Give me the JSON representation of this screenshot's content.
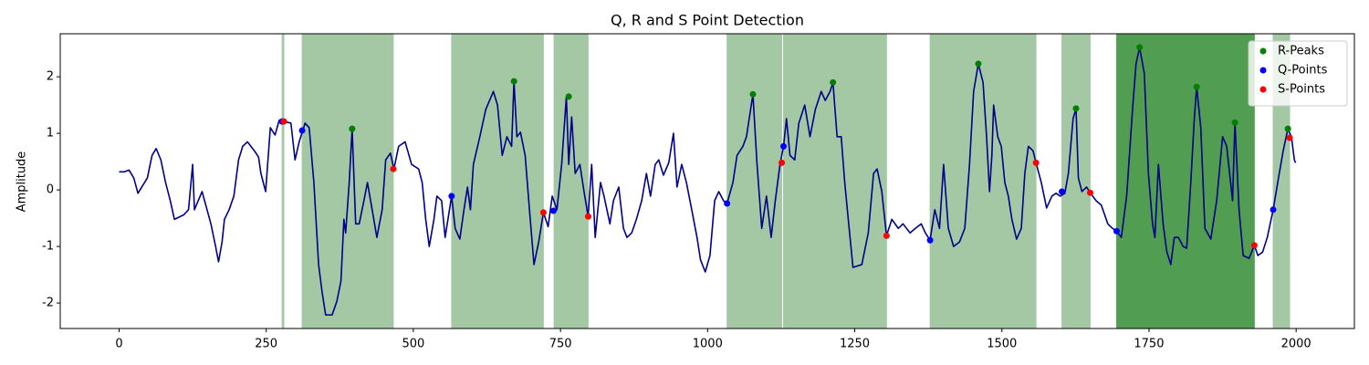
{
  "chart_data": {
    "type": "line",
    "title": "Q, R and S Point Detection",
    "y_label": "Amplitude",
    "xlim": [
      -100,
      2099
    ],
    "ylim": [
      -2.45,
      2.76
    ],
    "xticks": [
      0,
      250,
      500,
      750,
      1000,
      1250,
      1500,
      1750,
      2000
    ],
    "yticks": [
      -2,
      -1,
      0,
      1,
      2
    ],
    "grid": false,
    "legend": "upper right",
    "color": "#00008b",
    "x": [
      0,
      9,
      17,
      25,
      32,
      48,
      56,
      63,
      71,
      79,
      87,
      94,
      110,
      118,
      125,
      128,
      141,
      156,
      164,
      169,
      175,
      179,
      187,
      195,
      203,
      210,
      218,
      230,
      237,
      241,
      249,
      257,
      265,
      272,
      292,
      299,
      306,
      316,
      323,
      331,
      339,
      345,
      351,
      362,
      370,
      377,
      382,
      385,
      391,
      396,
      402,
      408,
      416,
      422,
      430,
      438,
      447,
      453,
      461,
      467,
      475,
      486,
      497,
      509,
      515,
      521,
      527,
      535,
      540,
      548,
      554,
      565,
      571,
      579,
      586,
      592,
      597,
      602,
      613,
      623,
      636,
      643,
      651,
      659,
      667,
      671,
      676,
      682,
      690,
      698,
      705,
      713,
      721,
      729,
      736,
      744,
      752,
      760,
      764,
      769,
      775,
      783,
      790,
      797,
      803,
      809,
      818,
      824,
      834,
      840,
      849,
      857,
      863,
      871,
      879,
      888,
      896,
      903,
      911,
      917,
      925,
      934,
      942,
      948,
      956,
      964,
      973,
      982,
      988,
      996,
      1004,
      1012,
      1019,
      1027,
      1033,
      1043,
      1050,
      1060,
      1066,
      1077,
      1084,
      1092,
      1100,
      1108,
      1115,
      1123,
      1129,
      1134,
      1140,
      1148,
      1155,
      1165,
      1174,
      1183,
      1193,
      1200,
      1208,
      1213,
      1220,
      1227,
      1233,
      1239,
      1247,
      1262,
      1273,
      1282,
      1288,
      1296,
      1304,
      1313,
      1324,
      1332,
      1344,
      1353,
      1363,
      1370,
      1378,
      1386,
      1394,
      1401,
      1409,
      1418,
      1428,
      1437,
      1445,
      1452,
      1460,
      1468,
      1474,
      1479,
      1483,
      1486,
      1493,
      1499,
      1505,
      1511,
      1517,
      1525,
      1533,
      1539,
      1545,
      1553,
      1558,
      1567,
      1576,
      1585,
      1592,
      1599,
      1607,
      1613,
      1621,
      1626,
      1630,
      1636,
      1644,
      1650,
      1660,
      1669,
      1680,
      1688,
      1695,
      1703,
      1712,
      1722,
      1728,
      1734,
      1742,
      1749,
      1756,
      1760,
      1766,
      1774,
      1780,
      1787,
      1793,
      1800,
      1808,
      1814,
      1821,
      1827,
      1831,
      1838,
      1845,
      1855,
      1865,
      1875,
      1882,
      1892,
      1896,
      1903,
      1910,
      1920,
      1929,
      1935,
      1943,
      1951,
      1961,
      1970,
      1978,
      1986,
      1992,
      1997,
      1999
    ],
    "values": [
      0.32,
      0.32,
      0.35,
      0.21,
      -0.06,
      0.21,
      0.61,
      0.73,
      0.53,
      0.13,
      -0.19,
      -0.52,
      -0.44,
      -0.35,
      0.45,
      -0.35,
      -0.03,
      -0.6,
      -1.0,
      -1.27,
      -0.92,
      -0.52,
      -0.35,
      -0.11,
      0.53,
      0.77,
      0.85,
      0.69,
      0.58,
      0.29,
      -0.03,
      1.1,
      0.97,
      1.23,
      1.18,
      0.53,
      0.85,
      1.18,
      1.1,
      0.13,
      -1.32,
      -1.81,
      -2.21,
      -2.21,
      -1.97,
      -1.61,
      -0.52,
      -0.76,
      0.13,
      1.08,
      -0.6,
      -0.6,
      -0.19,
      0.13,
      -0.35,
      -0.84,
      -0.35,
      0.53,
      0.65,
      0.37,
      0.77,
      0.85,
      0.45,
      0.37,
      0.13,
      -0.52,
      -1.0,
      -0.52,
      -0.11,
      -0.19,
      -0.84,
      -0.11,
      -0.68,
      -0.87,
      -0.35,
      0.05,
      -0.35,
      0.45,
      0.94,
      1.42,
      1.74,
      1.5,
      0.61,
      0.94,
      0.77,
      1.92,
      0.94,
      1.02,
      0.61,
      -0.44,
      -1.32,
      -0.92,
      -0.4,
      -0.65,
      -0.11,
      -0.35,
      0.45,
      1.65,
      0.45,
      1.29,
      0.29,
      0.45,
      -0.03,
      -0.47,
      0.45,
      -0.84,
      0.13,
      -0.11,
      -0.6,
      -0.19,
      0.05,
      -0.68,
      -0.84,
      -0.76,
      -0.52,
      -0.19,
      0.29,
      -0.11,
      0.45,
      0.53,
      0.26,
      0.48,
      1.0,
      0.05,
      0.45,
      0.13,
      -0.35,
      -0.84,
      -1.24,
      -1.45,
      -1.16,
      -0.19,
      -0.03,
      -0.19,
      -0.24,
      0.13,
      0.61,
      0.77,
      0.94,
      1.69,
      0.45,
      -0.68,
      -0.11,
      -0.84,
      -0.19,
      0.45,
      0.77,
      1.26,
      0.61,
      0.53,
      1.18,
      1.5,
      0.94,
      1.42,
      1.74,
      1.58,
      1.74,
      1.9,
      0.94,
      0.94,
      0.13,
      -0.52,
      -1.37,
      -1.32,
      -0.76,
      0.29,
      0.37,
      -0.03,
      -0.81,
      -0.52,
      -0.68,
      -0.6,
      -0.76,
      -0.68,
      -0.6,
      -0.76,
      -0.89,
      -0.35,
      -0.68,
      0.45,
      -0.68,
      -1.0,
      -0.92,
      -0.68,
      0.45,
      1.74,
      2.23,
      1.9,
      0.94,
      -0.03,
      0.61,
      1.5,
      0.94,
      0.77,
      0.13,
      -0.11,
      -0.52,
      -0.87,
      -0.68,
      0.29,
      0.77,
      0.69,
      0.48,
      0.13,
      -0.32,
      -0.11,
      -0.06,
      -0.11,
      -0.06,
      0.29,
      1.26,
      1.44,
      0.21,
      -0.03,
      0.05,
      -0.05,
      -0.19,
      -0.27,
      -0.6,
      -0.68,
      -0.73,
      -0.84,
      -0.11,
      1.42,
      2.23,
      2.52,
      2.06,
      0.29,
      -0.6,
      -0.84,
      0.45,
      -0.6,
      -1.08,
      -1.32,
      -0.84,
      -0.84,
      -1.0,
      -1.03,
      0.13,
      1.26,
      1.82,
      1.1,
      -0.68,
      -0.87,
      -0.19,
      0.94,
      0.77,
      -0.19,
      1.19,
      -0.35,
      -1.16,
      -1.21,
      -0.98,
      -1.16,
      -1.1,
      -0.84,
      -0.35,
      0.21,
      0.69,
      1.08,
      0.94,
      0.53,
      0.48
    ],
    "series": [
      {
        "name": "R-Peaks",
        "color": "#008000",
        "x": [
          396,
          671,
          764,
          1077,
          1213,
          1460,
          1626,
          1734,
          1831,
          1896,
          1986
        ],
        "values": [
          1.08,
          1.92,
          1.65,
          1.69,
          1.9,
          2.23,
          1.44,
          2.52,
          1.82,
          1.19,
          1.08
        ]
      },
      {
        "name": "Q-Points",
        "color": "#0000ff",
        "x": [
          277,
          311,
          565,
          738,
          1033,
          1129,
          1378,
          1602,
          1695,
          1961
        ],
        "values": [
          1.21,
          1.05,
          -0.11,
          -0.37,
          -0.24,
          0.77,
          -0.89,
          -0.03,
          -0.73,
          -0.35
        ]
      },
      {
        "name": "S-Points",
        "color": "#ff0000",
        "x": [
          280,
          466,
          721,
          797,
          1126,
          1304,
          1558,
          1650,
          1929,
          1989
        ],
        "values": [
          1.21,
          0.37,
          -0.4,
          -0.47,
          0.48,
          -0.81,
          0.48,
          -0.05,
          -0.98,
          0.92
        ]
      }
    ],
    "spans": [
      {
        "start": 277,
        "end": 280,
        "color": "#b2d8b2"
      },
      {
        "start": 311,
        "end": 466,
        "color": "#b2d8b2"
      },
      {
        "start": 565,
        "end": 721,
        "color": "#b2d8b2"
      },
      {
        "start": 739,
        "end": 797,
        "color": "#b2d8b2"
      },
      {
        "start": 1033,
        "end": 1126,
        "color": "#b2d8b2"
      },
      {
        "start": 1129,
        "end": 1304,
        "color": "#b2d8b2"
      },
      {
        "start": 1378,
        "end": 1558,
        "color": "#b2d8b2"
      },
      {
        "start": 1602,
        "end": 1650,
        "color": "#b2d8b2"
      },
      {
        "start": 1695,
        "end": 1929,
        "color": "#58ab58"
      },
      {
        "start": 1961,
        "end": 1989,
        "color": "#b2d8b2"
      }
    ]
  }
}
